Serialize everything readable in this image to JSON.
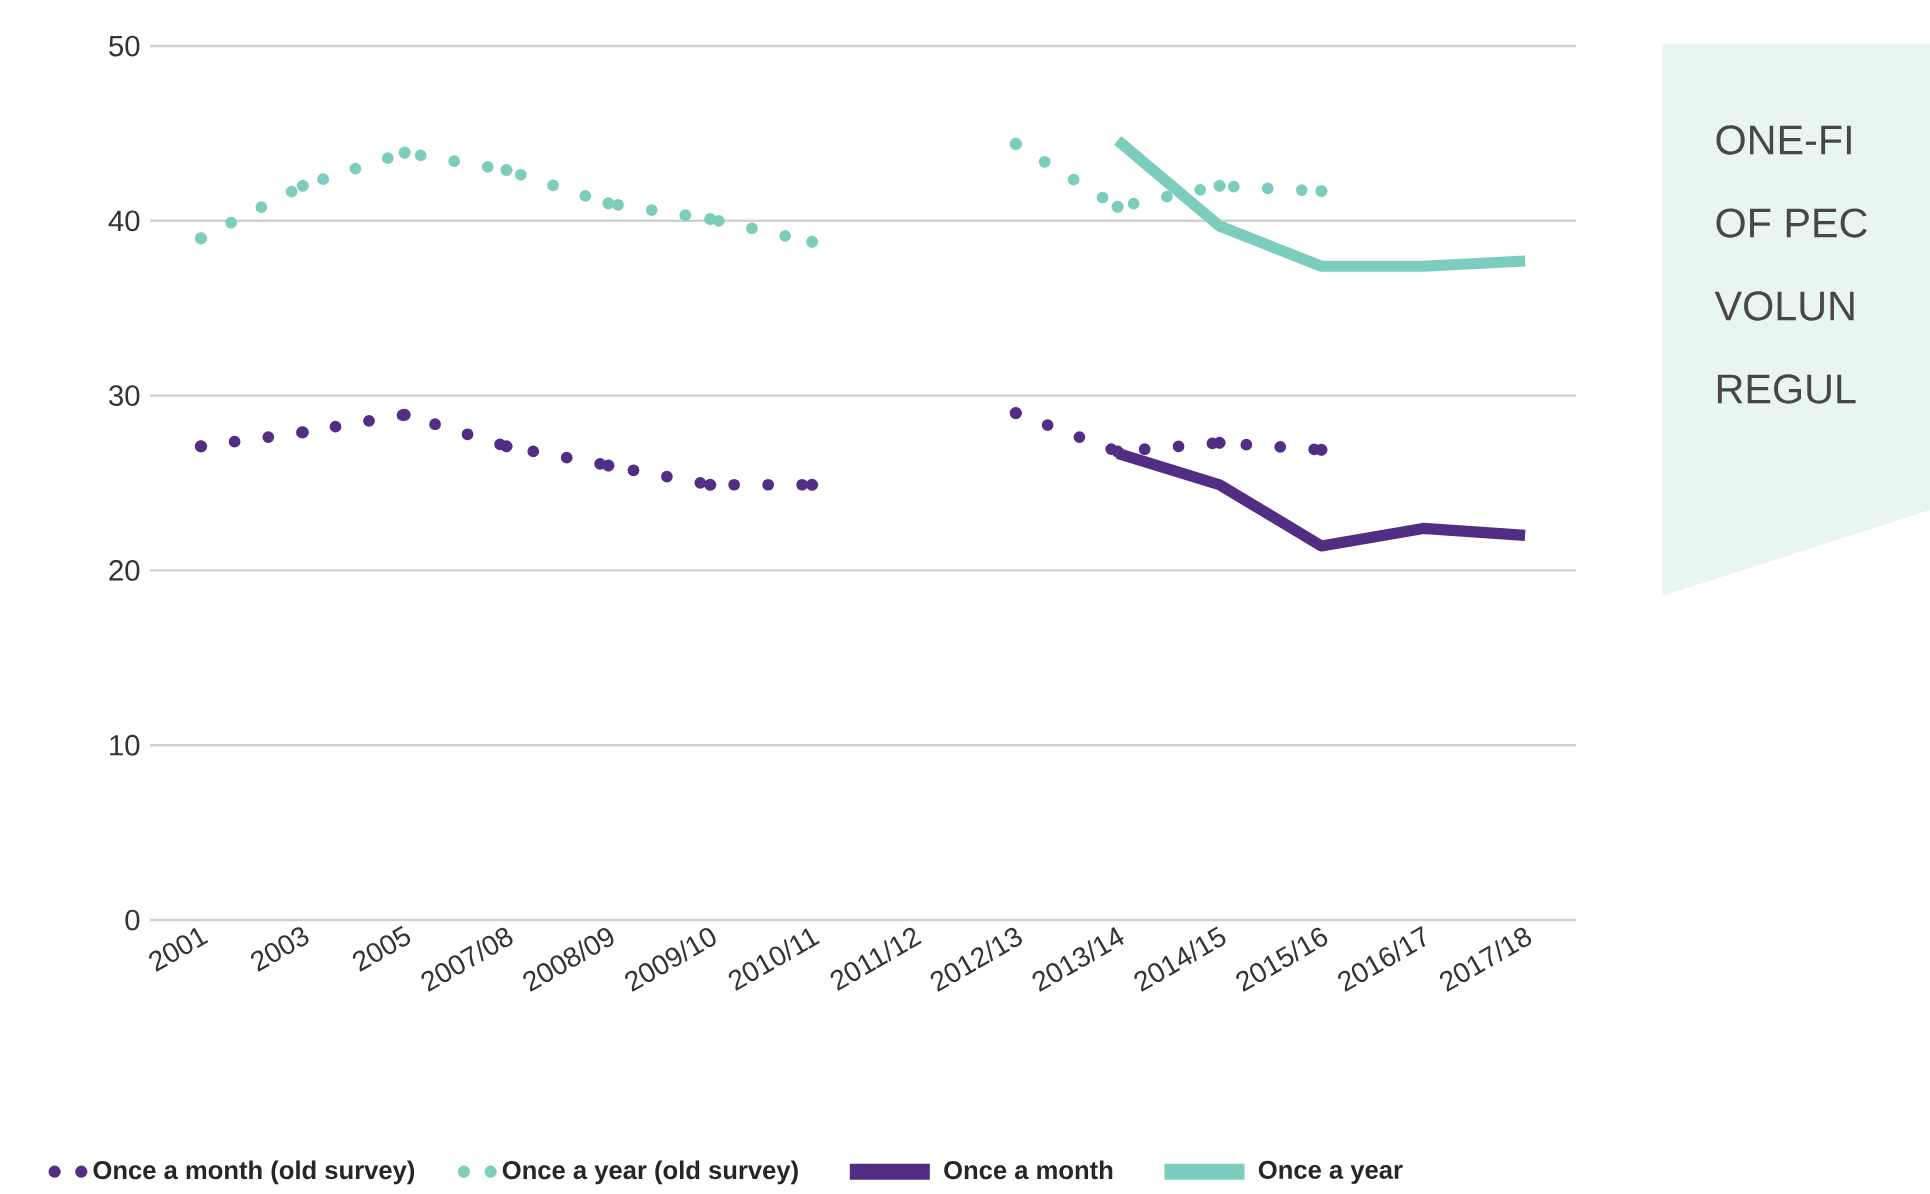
{
  "chart_data": {
    "type": "line",
    "categories": [
      "2001",
      "2003",
      "2005",
      "2007/08",
      "2008/09",
      "2009/10",
      "2010/11",
      "2011/12",
      "2012/13",
      "2013/14",
      "2014/15",
      "2015/16",
      "2016/17",
      "2017/18"
    ],
    "ylim": [
      0,
      50
    ],
    "yticks": [
      0,
      10,
      20,
      30,
      40,
      50
    ],
    "grid": "y",
    "legend": "bottom",
    "series": [
      {
        "name": "Once a month (old survey)",
        "line_style": "dotted",
        "marker": "circle",
        "color": "#512d83",
        "values": [
          27.1,
          27.9,
          28.9,
          27.1,
          26.0,
          24.9,
          24.9,
          null,
          29.0,
          26.8,
          27.3,
          26.9,
          null,
          null
        ]
      },
      {
        "name": "Once a year (old survey)",
        "line_style": "dotted",
        "marker": "circle",
        "color": "#7dcdbd",
        "values": [
          39.0,
          42.0,
          43.9,
          42.9,
          41.0,
          40.1,
          38.8,
          null,
          44.4,
          40.8,
          42.0,
          41.7,
          null,
          null
        ]
      },
      {
        "name": "Once a month",
        "color": "#512d83",
        "values": [
          null,
          null,
          null,
          null,
          null,
          null,
          null,
          null,
          null,
          26.7,
          24.9,
          21.4,
          22.4,
          22.0
        ]
      },
      {
        "name": "Once a year",
        "color": "#7dcdbd",
        "values": [
          null,
          null,
          null,
          null,
          null,
          null,
          null,
          null,
          null,
          44.6,
          39.7,
          37.4,
          37.4,
          37.7
        ]
      }
    ],
    "annotations": [
      "ONE-FI",
      "OF PEC",
      "VOLUN",
      "REGUL"
    ]
  }
}
